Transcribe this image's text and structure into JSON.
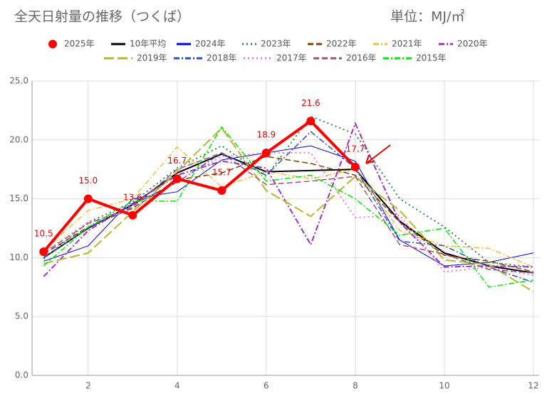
{
  "chart_data": {
    "type": "line",
    "title": "全天日射量の推移（つくば）",
    "subtitle": "単位：MJ/㎡",
    "x": [
      1,
      2,
      3,
      4,
      5,
      6,
      7,
      8,
      9,
      10,
      11,
      12
    ],
    "xlim": [
      0.74,
      12.13
    ],
    "xticks": [
      2,
      4,
      6,
      8,
      10,
      12
    ],
    "ylim": [
      0,
      25
    ],
    "yticks": [
      {
        "value": 0,
        "label": "0.0"
      },
      {
        "value": 5,
        "label": "5.0"
      },
      {
        "value": 10,
        "label": "10.0"
      },
      {
        "value": 15,
        "label": "15.0"
      },
      {
        "value": 20,
        "label": "20.0"
      },
      {
        "value": 25,
        "label": "25.0"
      }
    ],
    "grid": true,
    "series": [
      {
        "name": "2025年",
        "color": "#ff0000",
        "dash": "solid",
        "width": 4,
        "markers": true,
        "values": [
          10.5,
          15.0,
          13.6,
          16.7,
          15.7,
          18.9,
          21.6,
          17.7,
          null,
          null,
          null,
          null
        ],
        "value_labels": [
          "10.5",
          "15.0",
          "13.6",
          "16.7",
          "15.7",
          "18.9",
          "21.6",
          "17.7",
          null,
          null,
          null,
          null
        ]
      },
      {
        "name": "10年平均",
        "color": "#000000",
        "dash": "solid",
        "width": 2,
        "values": [
          10.0,
          12.5,
          14.5,
          17.2,
          18.8,
          17.3,
          17.4,
          17.5,
          13.1,
          10.4,
          9.3,
          8.7
        ]
      },
      {
        "name": "2024年",
        "color": "#0000ff",
        "dash": "solid",
        "width": 1,
        "values": [
          9.7,
          11.0,
          15.0,
          15.6,
          18.3,
          18.9,
          19.5,
          18.2,
          11.5,
          9.3,
          9.6,
          10.4
        ]
      },
      {
        "name": "2023年",
        "color": "#2e8b57",
        "dash": "dotted",
        "width": 2,
        "values": [
          9.9,
          13.0,
          14.7,
          17.6,
          19.5,
          16.9,
          22.0,
          20.5,
          15.0,
          12.6,
          9.6,
          9.2
        ]
      },
      {
        "name": "2022年",
        "color": "#804000",
        "dash": "dashed",
        "width": 1.5,
        "values": [
          10.3,
          12.6,
          14.2,
          16.6,
          17.2,
          18.6,
          18.0,
          17.0,
          13.0,
          10.2,
          9.7,
          8.8
        ]
      },
      {
        "name": "2021年",
        "color": "#f0c040",
        "dash": "dashdot",
        "width": 1.5,
        "values": [
          10.6,
          14.0,
          15.0,
          19.4,
          16.0,
          17.3,
          16.7,
          17.5,
          12.3,
          11.0,
          10.8,
          9.2
        ]
      },
      {
        "name": "2020年",
        "color": "#a030c0",
        "dash": "dashdot",
        "width": 2,
        "values": [
          8.4,
          12.3,
          14.6,
          17.0,
          18.2,
          17.6,
          11.1,
          21.4,
          13.0,
          9.2,
          9.3,
          9.2
        ]
      },
      {
        "name": "2019年",
        "color": "#b8b830",
        "dash": "longdash",
        "width": 2,
        "values": [
          9.5,
          10.4,
          13.9,
          17.3,
          21.0,
          15.7,
          13.5,
          16.9,
          14.0,
          9.8,
          9.4,
          7.1
        ]
      },
      {
        "name": "2018年",
        "color": "#3050c0",
        "dash": "dashdot",
        "width": 1.5,
        "values": [
          10.0,
          12.5,
          14.5,
          16.4,
          18.9,
          17.0,
          20.7,
          17.6,
          11.4,
          11.0,
          9.2,
          7.9
        ]
      },
      {
        "name": "2017年",
        "color": "#f080c0",
        "dash": "dotted",
        "width": 2,
        "values": [
          10.4,
          13.0,
          14.1,
          16.5,
          18.6,
          18.9,
          18.9,
          13.4,
          13.6,
          8.8,
          9.2,
          8.5
        ]
      },
      {
        "name": "2016年",
        "color": "#a05080",
        "dash": "dashed",
        "width": 1.5,
        "values": [
          10.4,
          12.9,
          14.3,
          17.5,
          18.9,
          16.2,
          16.5,
          16.9,
          11.1,
          10.3,
          9.0,
          8.7
        ]
      },
      {
        "name": "2015年",
        "color": "#00ee00",
        "dash": "dashdot",
        "width": 1.5,
        "values": [
          9.3,
          12.6,
          14.8,
          14.8,
          21.1,
          16.5,
          17.0,
          15.0,
          11.9,
          12.5,
          7.5,
          8.1
        ]
      }
    ]
  }
}
